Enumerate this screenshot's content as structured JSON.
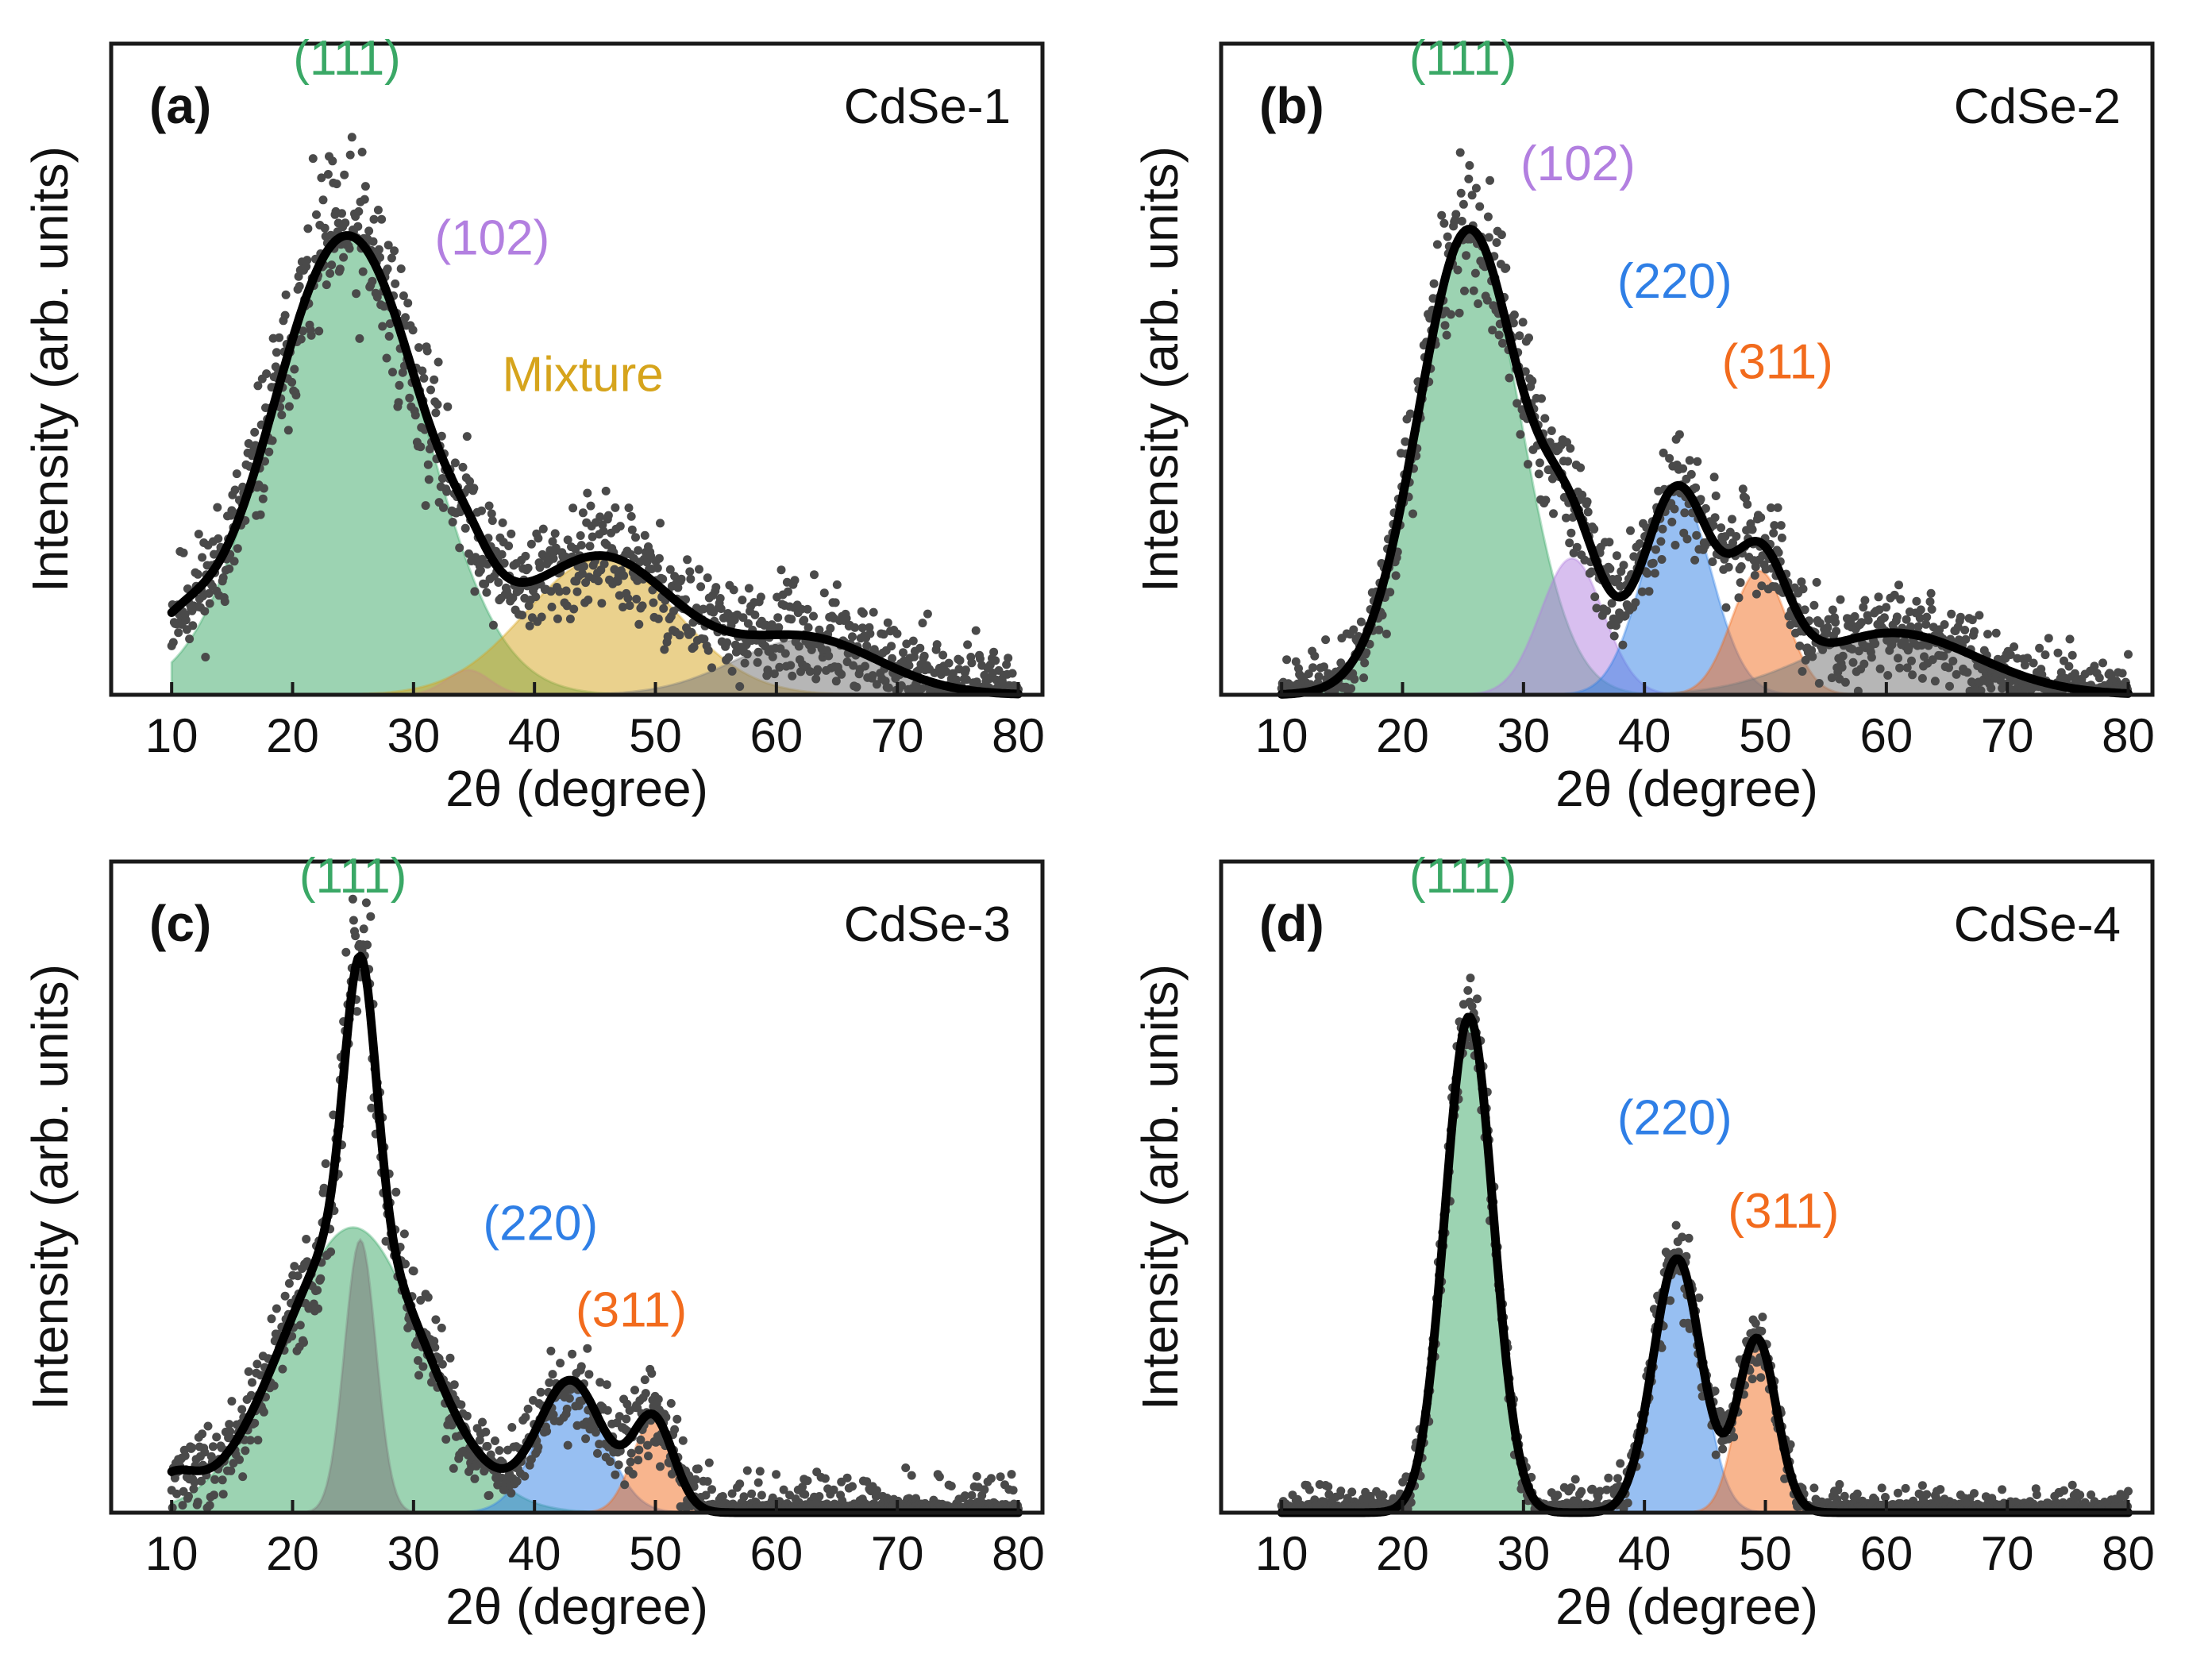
{
  "colors": {
    "p111": "#3aa866",
    "p102": "#b27fe0",
    "p220": "#2f7fe6",
    "p311": "#f26b1d",
    "mixture": "#d6a41c",
    "gray": "#7a7a7a",
    "fit": "#000000",
    "points": "#4a4a4a"
  },
  "chart_data": [
    {
      "type": "scatter",
      "panel": "(a)",
      "sample": "CdSe-1",
      "xlabel": "2θ (degree)",
      "ylabel": "Intensity (arb. units)",
      "xlim": [
        5,
        82
      ],
      "ylim": [
        0,
        1.05
      ],
      "xticks": [
        "10",
        "20",
        "30",
        "40",
        "50",
        "60",
        "70",
        "80"
      ],
      "peaks": [
        {
          "label": "(111)",
          "color": "p111",
          "center": 24.5,
          "width": 6.3,
          "amp": 0.74,
          "label_x": 24.5,
          "label_y": 1.0
        },
        {
          "label": "(102)",
          "color": "p102",
          "center": 34.5,
          "width": 1.8,
          "amp": 0.04,
          "label_x": 36.5,
          "label_y": 0.71
        },
        {
          "label": "Mixture",
          "color": "mixture",
          "center": 45.5,
          "width": 6.2,
          "amp": 0.22,
          "label_x": 44.0,
          "label_y": 0.49
        },
        {
          "label": "",
          "color": "gray",
          "center": 62.5,
          "width": 6.0,
          "amp": 0.09
        }
      ],
      "baseline": [
        {
          "center": 10,
          "width": 3,
          "amp": 0.08
        }
      ],
      "noise": 0.06,
      "seed": 11
    },
    {
      "type": "scatter",
      "panel": "(b)",
      "sample": "CdSe-2",
      "xlabel": "2θ (degree)",
      "ylabel": "Intensity (arb. units)",
      "xlim": [
        5,
        82
      ],
      "ylim": [
        0,
        1.05
      ],
      "xticks": [
        "10",
        "20",
        "30",
        "40",
        "50",
        "60",
        "70",
        "80"
      ],
      "peaks": [
        {
          "label": "(111)",
          "color": "p111",
          "center": 25.5,
          "width": 4.2,
          "amp": 0.75,
          "label_x": 25.0,
          "label_y": 1.0
        },
        {
          "label": "(102)",
          "color": "p102",
          "center": 34.0,
          "width": 2.6,
          "amp": 0.22,
          "label_x": 34.5,
          "label_y": 0.83
        },
        {
          "label": "(220)",
          "color": "p220",
          "center": 42.7,
          "width": 2.8,
          "amp": 0.33,
          "label_x": 42.5,
          "label_y": 0.64
        },
        {
          "label": "(311)",
          "color": "p311",
          "center": 49.5,
          "width": 2.3,
          "amp": 0.2,
          "label_x": 51.0,
          "label_y": 0.51
        },
        {
          "label": "",
          "color": "gray",
          "center": 60.5,
          "width": 7.0,
          "amp": 0.1
        }
      ],
      "baseline": [],
      "noise": 0.05,
      "seed": 23
    },
    {
      "type": "scatter",
      "panel": "(c)",
      "sample": "CdSe-3",
      "xlabel": "2θ (degree)",
      "ylabel": "Intensity (arb. units)",
      "xlim": [
        5,
        82
      ],
      "ylim": [
        0,
        1.05
      ],
      "xticks": [
        "10",
        "20",
        "30",
        "40",
        "50",
        "60",
        "70",
        "80"
      ],
      "peaks": [
        {
          "label": "(111)",
          "color": "p111",
          "center": 25.0,
          "width": 5.8,
          "amp": 0.46,
          "label_x": 25.0,
          "label_y": 1.0
        },
        {
          "label": "",
          "color": "gray",
          "center": 25.6,
          "width": 1.3,
          "amp": 0.44
        },
        {
          "label": "(220)",
          "color": "p220",
          "center": 43.0,
          "width": 2.7,
          "amp": 0.21,
          "label_x": 40.5,
          "label_y": 0.44
        },
        {
          "label": "(311)",
          "color": "p311",
          "center": 49.8,
          "width": 1.7,
          "amp": 0.15,
          "label_x": 48.0,
          "label_y": 0.3
        }
      ],
      "baseline": [
        {
          "center": 10,
          "width": 2,
          "amp": 0.05
        }
      ],
      "noise": 0.05,
      "seed": 37
    },
    {
      "type": "scatter",
      "panel": "(d)",
      "sample": "CdSe-4",
      "xlabel": "2θ (degree)",
      "ylabel": "Intensity (arb. units)",
      "xlim": [
        5,
        82
      ],
      "ylim": [
        0,
        1.05
      ],
      "xticks": [
        "10",
        "20",
        "30",
        "40",
        "50",
        "60",
        "70",
        "80"
      ],
      "peaks": [
        {
          "label": "(111)",
          "color": "p111",
          "center": 25.5,
          "width": 2.0,
          "amp": 0.8,
          "label_x": 25.0,
          "label_y": 1.0
        },
        {
          "label": "(220)",
          "color": "p220",
          "center": 42.7,
          "width": 2.0,
          "amp": 0.41,
          "label_x": 42.5,
          "label_y": 0.61
        },
        {
          "label": "(311)",
          "color": "p311",
          "center": 49.3,
          "width": 1.6,
          "amp": 0.28,
          "label_x": 51.5,
          "label_y": 0.46
        }
      ],
      "baseline": [],
      "noise": 0.035,
      "seed": 53
    }
  ]
}
